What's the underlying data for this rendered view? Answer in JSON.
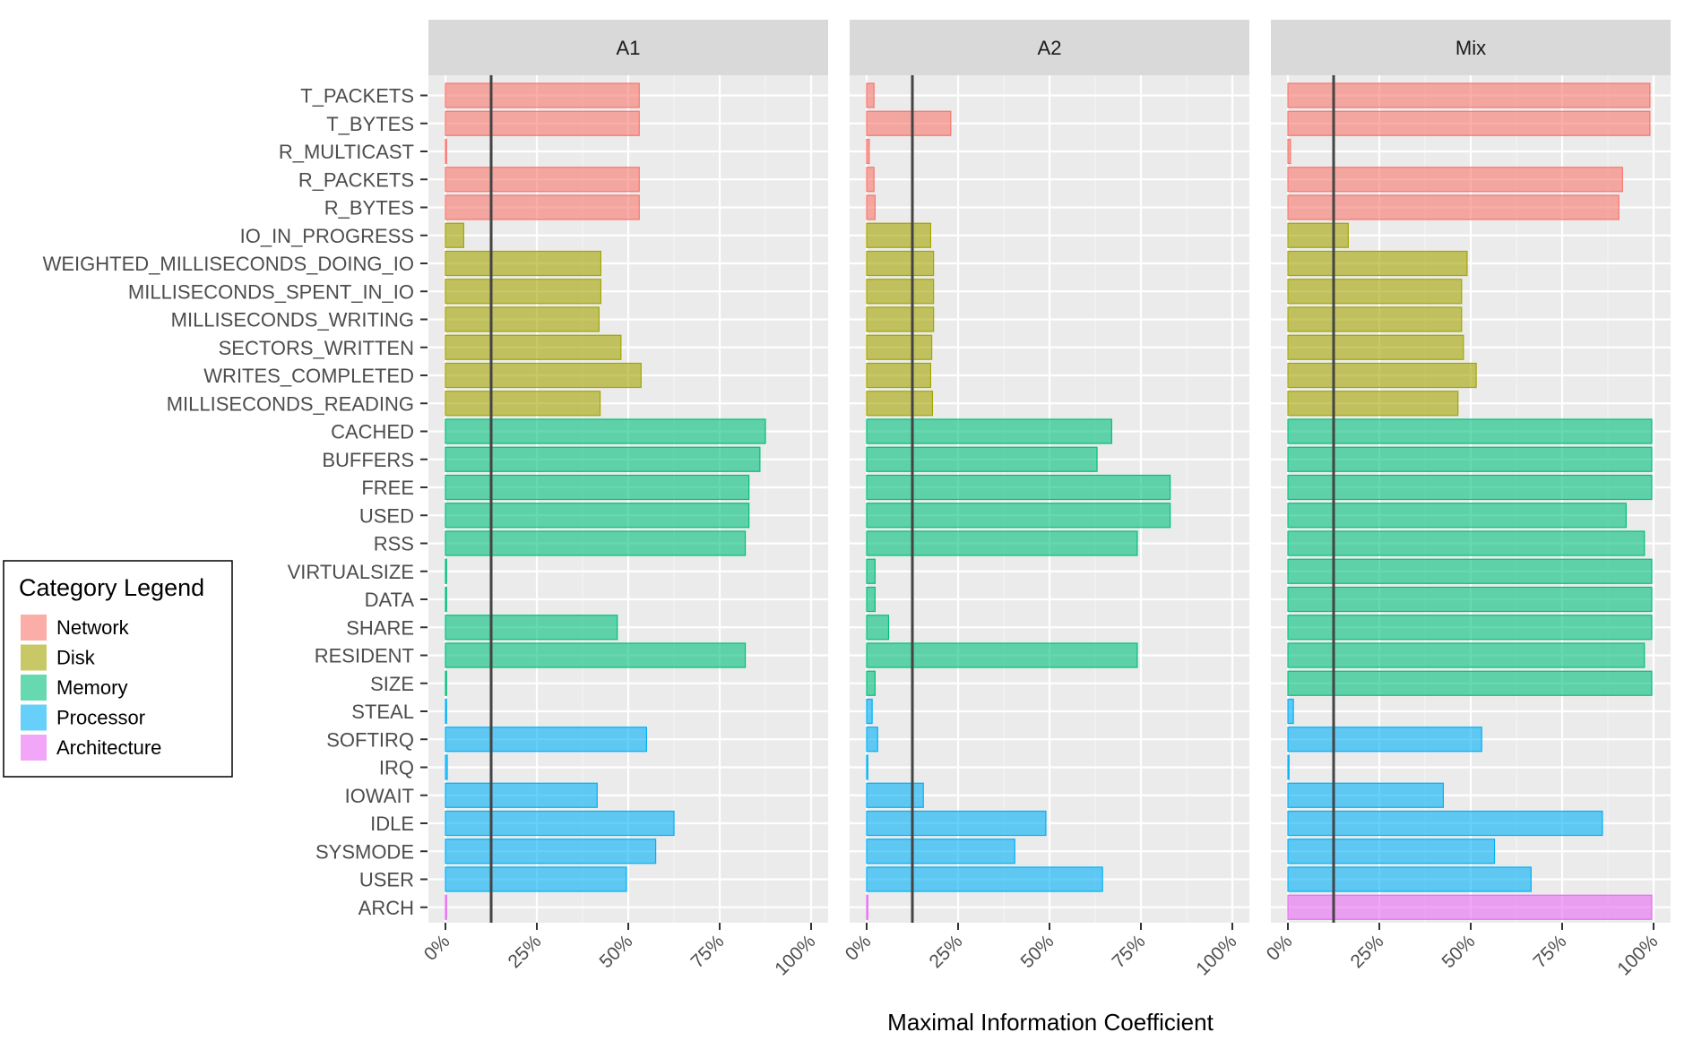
{
  "chart_data": {
    "type": "bar",
    "orientation": "horizontal",
    "xlabel": "Maximal Information Coefficient",
    "xlim": [
      0,
      100
    ],
    "xticks": [
      "0%",
      "25%",
      "50%",
      "75%",
      "100%"
    ],
    "xtick_values": [
      0,
      25,
      50,
      75,
      100
    ],
    "reference_line": 12.5,
    "categories": [
      "T_PACKETS",
      "T_BYTES",
      "R_MULTICAST",
      "R_PACKETS",
      "R_BYTES",
      "IO_IN_PROGRESS",
      "WEIGHTED_MILLISECONDS_DOING_IO",
      "MILLISECONDS_SPENT_IN_IO",
      "MILLISECONDS_WRITING",
      "SECTORS_WRITTEN",
      "WRITES_COMPLETED",
      "MILLISECONDS_READING",
      "CACHED",
      "BUFFERS",
      "FREE",
      "USED",
      "RSS",
      "VIRTUALSIZE",
      "DATA",
      "SHARE",
      "RESIDENT",
      "SIZE",
      "STEAL",
      "SOFTIRQ",
      "IRQ",
      "IOWAIT",
      "IDLE",
      "SYSMODE",
      "USER",
      "ARCH"
    ],
    "category_group": [
      "Network",
      "Network",
      "Network",
      "Network",
      "Network",
      "Disk",
      "Disk",
      "Disk",
      "Disk",
      "Disk",
      "Disk",
      "Disk",
      "Memory",
      "Memory",
      "Memory",
      "Memory",
      "Memory",
      "Memory",
      "Memory",
      "Memory",
      "Memory",
      "Memory",
      "Processor",
      "Processor",
      "Processor",
      "Processor",
      "Processor",
      "Processor",
      "Processor",
      "Architecture"
    ],
    "panels": [
      {
        "name": "A1",
        "values": [
          53,
          53,
          0.3,
          53,
          53,
          5,
          42.5,
          42.5,
          42,
          48,
          53.5,
          42.3,
          87.5,
          86,
          83,
          83,
          82,
          0.3,
          0.3,
          47,
          82,
          0.3,
          0.3,
          55,
          0.5,
          41.5,
          62.5,
          57.5,
          49.5,
          0.3
        ]
      },
      {
        "name": "A2",
        "values": [
          2,
          23,
          0.7,
          2,
          2.3,
          17.5,
          18.3,
          18.3,
          18.3,
          17.8,
          17.5,
          18,
          67,
          63,
          83,
          83,
          74,
          2.3,
          2.3,
          6,
          74,
          2.3,
          1.5,
          3,
          0.3,
          15.5,
          49,
          40.5,
          64.5,
          0.3
        ]
      },
      {
        "name": "Mix",
        "values": [
          99,
          99,
          0.7,
          91.5,
          90.5,
          16.5,
          49,
          47.5,
          47.5,
          48,
          51.5,
          46.5,
          99.5,
          99.5,
          99.5,
          92.5,
          97.5,
          99.5,
          99.5,
          99.5,
          97.5,
          99.5,
          1.5,
          53,
          0.3,
          42.5,
          86,
          56.5,
          66.5,
          99.5
        ]
      }
    ],
    "legend": {
      "title": "Category Legend",
      "position": "left",
      "items": [
        {
          "label": "Network",
          "color": "#F8766D"
        },
        {
          "label": "Disk",
          "color": "#A3A500"
        },
        {
          "label": "Memory",
          "color": "#00BF7D"
        },
        {
          "label": "Processor",
          "color": "#00B0F6"
        },
        {
          "label": "Architecture",
          "color": "#E76BF3"
        }
      ]
    },
    "bar_opacity": 0.6,
    "grid": true
  }
}
